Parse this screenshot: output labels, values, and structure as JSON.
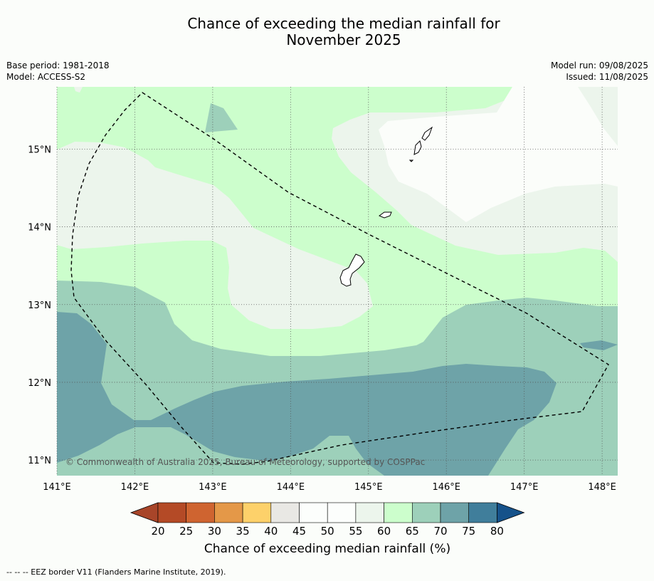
{
  "title": {
    "line1": "Chance of exceeding the median rainfall for",
    "line2": "November 2025"
  },
  "meta": {
    "base_period": "Base period: 1981-2018",
    "model": "Model: ACCESS-S2",
    "model_run": "Model run: 09/08/2025",
    "issued": "Issued: 11/08/2025"
  },
  "map": {
    "lon_range": [
      141,
      148.2
    ],
    "lat_range": [
      10.8,
      15.8
    ],
    "lon_ticks": [
      {
        "value": 141,
        "label": "141°E"
      },
      {
        "value": 142,
        "label": "142°E"
      },
      {
        "value": 143,
        "label": "143°E"
      },
      {
        "value": 144,
        "label": "144°E"
      },
      {
        "value": 145,
        "label": "145°E"
      },
      {
        "value": 146,
        "label": "146°E"
      },
      {
        "value": 147,
        "label": "147°E"
      },
      {
        "value": 148,
        "label": "148°E"
      }
    ],
    "lat_ticks": [
      {
        "value": 15,
        "label": "15°N"
      },
      {
        "value": 14,
        "label": "14°N"
      },
      {
        "value": 13,
        "label": "13°N"
      },
      {
        "value": 12,
        "label": "12°N"
      },
      {
        "value": 11,
        "label": "11°N"
      }
    ],
    "gridlines": "dotted",
    "copyright": "© Commonwealth of Australia 2025, Bureau of Meteorology, supported by COSPPac"
  },
  "colorbar": {
    "title": "Chance of exceeding median rainfall (%)",
    "ticks": [
      "20",
      "25",
      "30",
      "35",
      "40",
      "45",
      "50",
      "55",
      "60",
      "65",
      "70",
      "75",
      "80"
    ],
    "under_color": "#a84529",
    "over_color": "#16528a",
    "bins": [
      {
        "range": "20-25",
        "color": "#b44a26"
      },
      {
        "range": "25-30",
        "color": "#cf6430"
      },
      {
        "range": "30-35",
        "color": "#e49848"
      },
      {
        "range": "35-40",
        "color": "#fdd16a"
      },
      {
        "range": "40-45",
        "color": "#e9e8e4"
      },
      {
        "range": "45-50",
        "color": "#fcfefc"
      },
      {
        "range": "50-55",
        "color": "#fcfefc"
      },
      {
        "range": "55-60",
        "color": "#ecf5ec"
      },
      {
        "range": "60-65",
        "color": "#ccfecc"
      },
      {
        "range": "65-70",
        "color": "#9dd0ba"
      },
      {
        "range": "70-75",
        "color": "#6ea3a8"
      },
      {
        "range": "75-80",
        "color": "#407e9b"
      }
    ]
  },
  "footnote": "--  --  -- EEZ border V11 (Flanders Marine Institute, 2019)."
}
